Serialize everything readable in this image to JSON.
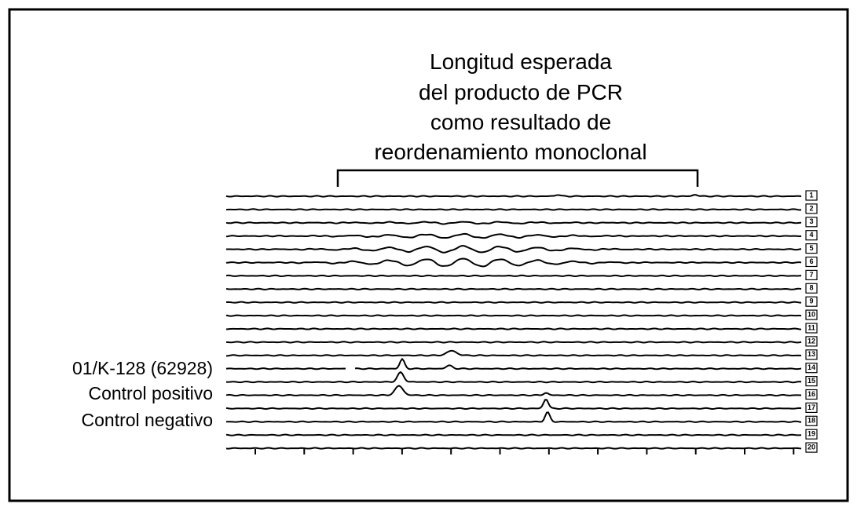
{
  "header": {
    "lines": [
      "Longitud esperada",
      "del producto de PCR",
      "como resultado de",
      "reordenamiento monoclonal"
    ]
  },
  "sample_labels": [
    "01/K-128 (62928)",
    "Control positivo",
    "Control negativo"
  ],
  "lanes": [
    "1",
    "2",
    "3",
    "4",
    "5",
    "6",
    "7",
    "8",
    "9",
    "10",
    "11",
    "12",
    "13",
    "14",
    "15",
    "16",
    "17",
    "18",
    "19",
    "20"
  ]
}
